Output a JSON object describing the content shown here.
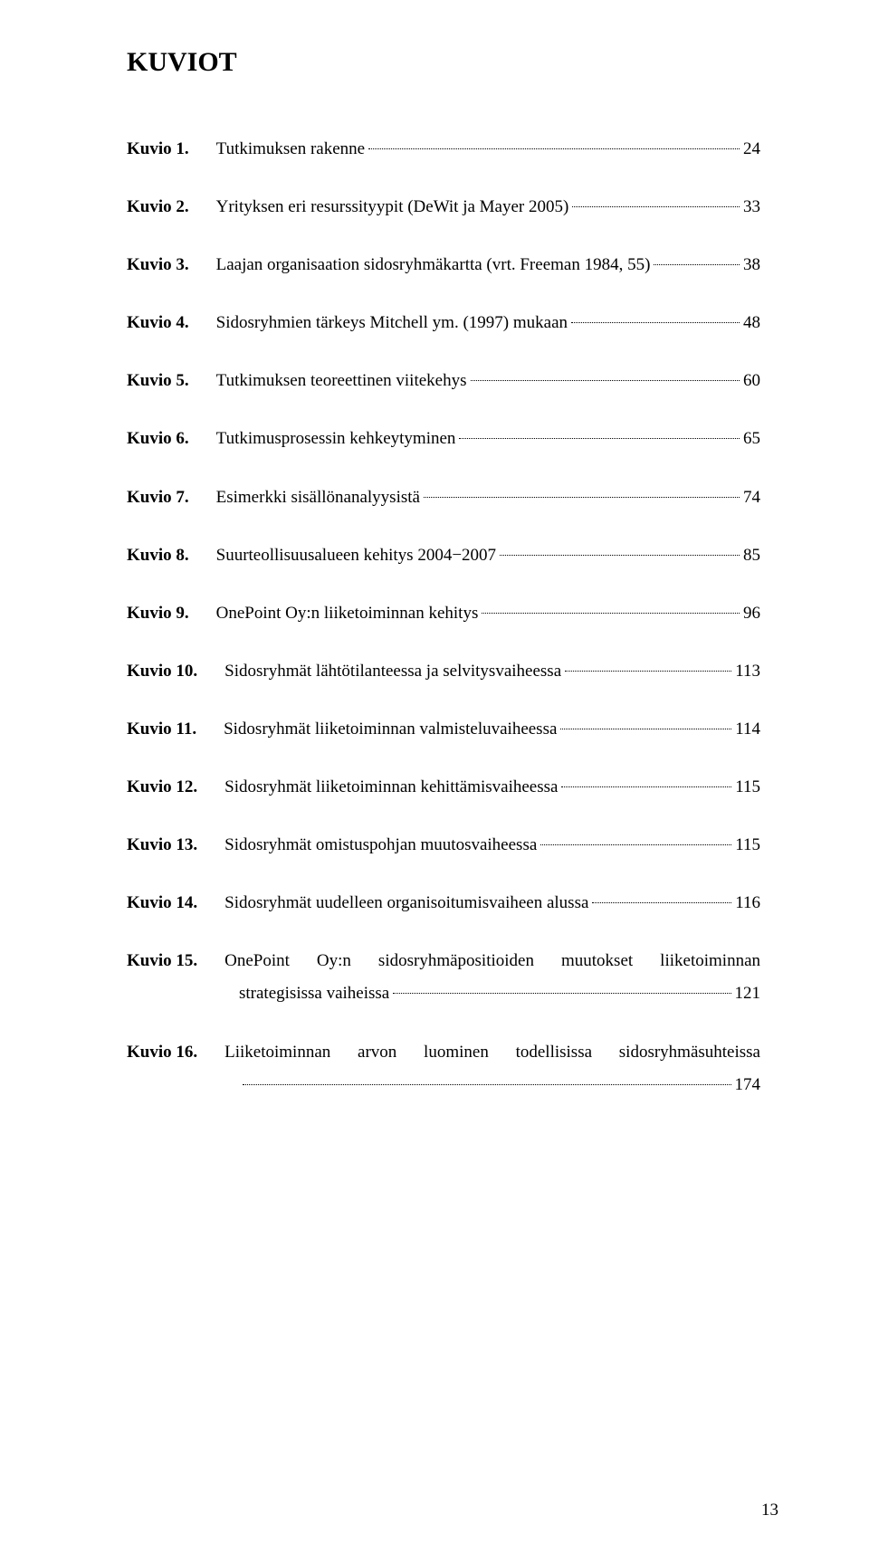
{
  "heading": "KUVIOT",
  "colors": {
    "background": "#ffffff",
    "text": "#000000",
    "leader": "#000000"
  },
  "typography": {
    "heading_size_pt": 22,
    "body_size_pt": 14,
    "line_height": 1.9,
    "font_family": "Times New Roman"
  },
  "page_number": "13",
  "entries": [
    {
      "label": "Kuvio 1.",
      "desc": "Tutkimuksen rakenne",
      "page": "24"
    },
    {
      "label": "Kuvio 2.",
      "desc": "Yrityksen eri resurssityypit (DeWit ja Mayer 2005)",
      "page": "33"
    },
    {
      "label": "Kuvio 3.",
      "desc": "Laajan organisaation sidosryhmäkartta (vrt. Freeman 1984, 55)",
      "page": "38"
    },
    {
      "label": "Kuvio 4.",
      "desc": "Sidosryhmien tärkeys Mitchell ym. (1997) mukaan",
      "page": "48"
    },
    {
      "label": "Kuvio 5.",
      "desc": "Tutkimuksen teoreettinen viitekehys",
      "page": "60"
    },
    {
      "label": "Kuvio 6.",
      "desc": "Tutkimusprosessin kehkeytyminen",
      "page": "65"
    },
    {
      "label": "Kuvio 7.",
      "desc": "Esimerkki sisällönanalyysistä",
      "page": "74"
    },
    {
      "label": "Kuvio 8.",
      "desc": "Suurteollisuusalueen kehitys 2004−2007",
      "page": "85"
    },
    {
      "label": "Kuvio 9.",
      "desc": "OnePoint Oy:n liiketoiminnan kehitys",
      "page": "96"
    },
    {
      "label": "Kuvio 10.",
      "desc": "Sidosryhmät lähtötilanteessa ja selvitysvaiheessa",
      "page": "113"
    },
    {
      "label": "Kuvio 11.",
      "desc": "Sidosryhmät liiketoiminnan valmisteluvaiheessa",
      "page": "114"
    },
    {
      "label": "Kuvio 12.",
      "desc": "Sidosryhmät liiketoiminnan kehittämisvaiheessa",
      "page": "115"
    },
    {
      "label": "Kuvio 13.",
      "desc": "Sidosryhmät omistuspohjan muutosvaiheessa",
      "page": "115"
    },
    {
      "label": "Kuvio 14.",
      "desc": "Sidosryhmät uudelleen organisoitumisvaiheen alussa",
      "page": "116"
    }
  ],
  "entry15": {
    "label": "Kuvio 15.",
    "line1": "OnePoint Oy:n sidosryhmäpositioiden muutokset liiketoiminnan",
    "line2": "strategisissa vaiheissa",
    "page": "121"
  },
  "entry16": {
    "label": "Kuvio 16.",
    "line1": "Liiketoiminnan arvon luominen todellisissa sidosryhmäsuhteissa",
    "line2": "",
    "page": "174"
  }
}
